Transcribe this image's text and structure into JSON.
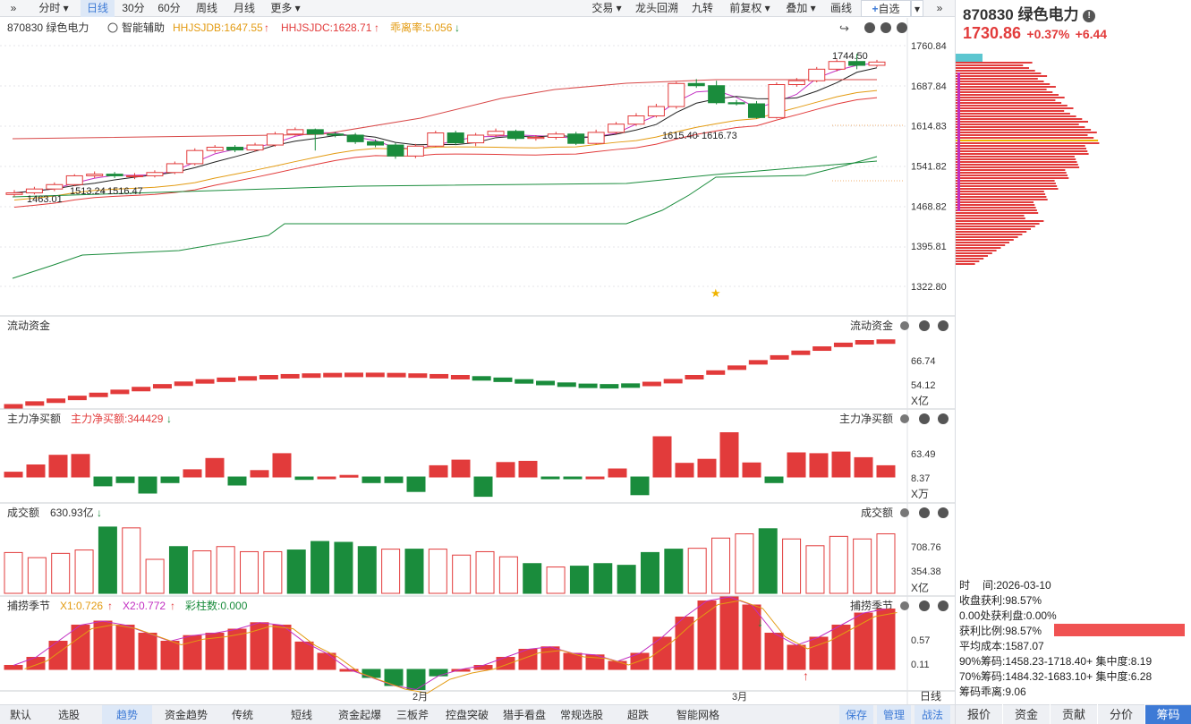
{
  "toolbar": {
    "collapse": "»",
    "tabs": [
      "分时",
      "日线",
      "30分",
      "60分",
      "周线",
      "月线",
      "更多"
    ],
    "active": 1,
    "right": [
      "交易",
      "龙头回溯",
      "九转",
      "前复权",
      "叠加",
      "画线",
      "自选"
    ],
    "collapse_right": "»"
  },
  "stock": {
    "code": "870830",
    "name": "绿色电力",
    "price": "1730.86",
    "pct": "+0.37%",
    "chg": "+6.44",
    "header": "870830 绿色电力"
  },
  "main_legend": {
    "assist": "智能辅助",
    "db": "HHJSJDB:1647.55",
    "dc": "HHJSJDC:1628.71",
    "glv": "乖离率:5.056"
  },
  "main_axis": [
    "1760.84",
    "1687.84",
    "1614.83",
    "1541.82",
    "1468.82",
    "1395.81",
    "1322.80"
  ],
  "annotations": [
    "1744.50",
    "1615.40",
    "1616.73",
    "1513.24",
    "1516.47",
    "1463.01"
  ],
  "flow": {
    "title": "流动资金",
    "right": "流动资金",
    "ticks": [
      "66.74",
      "54.12"
    ],
    "unit": "X亿"
  },
  "net": {
    "title": "主力净买额",
    "label": "主力净买额:344429",
    "right": "主力净买额",
    "ticks": [
      "63.49",
      "8.37"
    ],
    "unit": "X万"
  },
  "vol": {
    "title": "成交额",
    "value": "630.93亿",
    "right": "成交额",
    "ticks": [
      "708.76",
      "354.38"
    ],
    "unit": "X亿"
  },
  "season": {
    "title": "捕捞季节",
    "x1": "X1:0.726",
    "x2": "X2:0.772",
    "bar": "彩柱数:0.000",
    "right": "捕捞季节",
    "ticks": [
      "0.57",
      "0.11"
    ]
  },
  "months": [
    "2月",
    "3月"
  ],
  "period": "日线",
  "bottom": [
    "默认",
    "选股",
    "趋势",
    "资金趋势",
    "传统",
    "短线",
    "资金起爆",
    "三板斧",
    "控盘突破",
    "猎手看盘",
    "常规选股",
    "超跌",
    "智能网格"
  ],
  "bottom_active": 2,
  "bottom_right": [
    "保存",
    "管理",
    "战法"
  ],
  "info": {
    "time_label": "时",
    "time_label2": "间:2026-03-10",
    "profit": "收盘获利:98.57%",
    "zero": "0.00处获利盘:0.00%",
    "ratio": "获利比例:98.57%",
    "cost": "平均成本:1587.07",
    "c90": "90%筹码:1458.23-1718.40+ 集中度:8.19",
    "c70": "70%筹码:1484.32-1683.10+ 集中度:6.28",
    "dev": "筹码乖离:9.06"
  },
  "rtabs": [
    "报价",
    "资金",
    "贡献",
    "分价",
    "筹码"
  ],
  "rtab_active": 4,
  "chart_data": [
    {
      "type": "candlestick",
      "ylim": [
        1322.8,
        1760.84
      ],
      "candles": [
        [
          1490,
          1493,
          1498,
          1486
        ],
        [
          1493,
          1500,
          1504,
          1490
        ],
        [
          1500,
          1508,
          1512,
          1496
        ],
        [
          1508,
          1524,
          1527,
          1505
        ],
        [
          1524,
          1527,
          1532,
          1520
        ],
        [
          1527,
          1524,
          1531,
          1520
        ],
        [
          1524,
          1524,
          1529,
          1518
        ],
        [
          1524,
          1530,
          1534,
          1521
        ],
        [
          1530,
          1546,
          1550,
          1527
        ],
        [
          1546,
          1570,
          1574,
          1543
        ],
        [
          1570,
          1576,
          1580,
          1566
        ],
        [
          1576,
          1571,
          1580,
          1567
        ],
        [
          1571,
          1580,
          1584,
          1568
        ],
        [
          1580,
          1600,
          1604,
          1577
        ],
        [
          1600,
          1608,
          1612,
          1597
        ],
        [
          1608,
          1600,
          1610,
          1570
        ],
        [
          1600,
          1598,
          1604,
          1594
        ],
        [
          1598,
          1586,
          1602,
          1582
        ],
        [
          1586,
          1580,
          1590,
          1576
        ],
        [
          1580,
          1560,
          1584,
          1555
        ],
        [
          1560,
          1578,
          1582,
          1556
        ],
        [
          1578,
          1602,
          1606,
          1576
        ],
        [
          1602,
          1584,
          1606,
          1580
        ],
        [
          1584,
          1598,
          1602,
          1578
        ],
        [
          1598,
          1605,
          1610,
          1595
        ],
        [
          1605,
          1592,
          1608,
          1588
        ],
        [
          1592,
          1594,
          1598,
          1588
        ],
        [
          1594,
          1600,
          1604,
          1590
        ],
        [
          1600,
          1583,
          1604,
          1580
        ],
        [
          1583,
          1603,
          1608,
          1581
        ],
        [
          1603,
          1618,
          1622,
          1600
        ],
        [
          1618,
          1633,
          1638,
          1615
        ],
        [
          1633,
          1650,
          1655,
          1630
        ],
        [
          1650,
          1692,
          1695,
          1646
        ],
        [
          1692,
          1688,
          1700,
          1684
        ],
        [
          1688,
          1657,
          1697,
          1654
        ],
        [
          1657,
          1655,
          1662,
          1652
        ],
        [
          1655,
          1630,
          1660,
          1628
        ],
        [
          1630,
          1690,
          1694,
          1628
        ],
        [
          1690,
          1697,
          1702,
          1686
        ],
        [
          1697,
          1718,
          1722,
          1694
        ],
        [
          1718,
          1732,
          1736,
          1714
        ],
        [
          1732,
          1725,
          1746,
          1718
        ],
        [
          1725,
          1731,
          1735,
          1722
        ]
      ]
    },
    {
      "type": "bar",
      "name": "流动资金",
      "values": [
        0,
        1.2,
        2.4,
        3.6,
        4.9,
        6.2,
        7.4,
        8.6,
        9.7,
        10.7,
        11.4,
        12.0,
        12.5,
        12.9,
        13.2,
        13.4,
        13.5,
        13.5,
        13.4,
        13.2,
        12.9,
        12.5,
        12.0,
        11.4,
        10.7,
        10.0,
        9.3,
        8.8,
        8.6,
        8.9,
        9.6,
        10.8,
        12.5,
        14.5,
        16.6,
        18.9,
        21.0,
        23.0,
        24.8,
        26.4,
        27.5,
        27.8
      ]
    },
    {
      "type": "bar",
      "name": "主力净买额",
      "values": [
        12,
        30,
        54,
        56,
        -22,
        -14,
        -40,
        -14,
        18,
        46,
        -20,
        16,
        58,
        -6,
        0,
        4,
        -14,
        -14,
        -36,
        28,
        42,
        -48,
        36,
        39,
        -4,
        -4,
        0,
        20,
        -44,
        100,
        34,
        44,
        110,
        35,
        -14,
        60,
        58,
        62,
        48,
        28
      ]
    },
    {
      "type": "bar",
      "name": "成交额",
      "values": [
        480,
        420,
        470,
        510,
        780,
        770,
        400,
        550,
        500,
        550,
        490,
        490,
        510,
        610,
        600,
        550,
        520,
        520,
        520,
        450,
        490,
        430,
        350,
        310,
        320,
        350,
        330,
        480,
        520,
        530,
        650,
        700,
        760,
        640,
        560,
        670,
        640,
        700
      ]
    },
    {
      "type": "bar",
      "name": "捕捞季节",
      "values": [
        0.05,
        0.15,
        0.35,
        0.55,
        0.6,
        0.55,
        0.45,
        0.35,
        0.42,
        0.45,
        0.5,
        0.58,
        0.55,
        0.34,
        0.2,
        0.0,
        -0.1,
        -0.2,
        -0.25,
        -0.08,
        0.0,
        0.05,
        0.15,
        0.25,
        0.28,
        0.2,
        0.18,
        0.1,
        0.2,
        0.4,
        0.65,
        0.85,
        0.9,
        0.8,
        0.45,
        0.3,
        0.4,
        0.55,
        0.7,
        0.75
      ]
    }
  ]
}
